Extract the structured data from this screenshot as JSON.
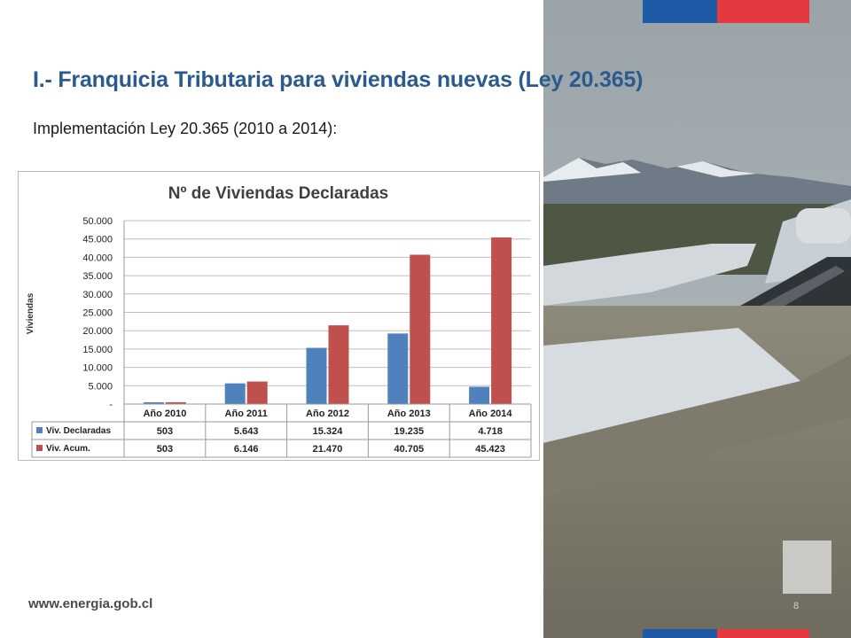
{
  "slide": {
    "title": "I.- Franquicia Tributaria para viviendas nuevas (Ley 20.365)",
    "subtitle": "Implementación Ley 20.365 (2010 a 2014):",
    "website": "www.energia.gob.cl",
    "page_number": "8"
  },
  "colors": {
    "title": "#2b5a8f",
    "flag_blue": "#1f5aa6",
    "flag_red": "#e5393f",
    "series_declaradas": "#4f81bd",
    "series_acum": "#c0504d"
  },
  "chart_data": {
    "type": "bar",
    "title": "Nº de Viviendas Declaradas",
    "ylabel": "Viviendas",
    "xlabel": "",
    "categories": [
      "Año 2010",
      "Año 2011",
      "Año 2012",
      "Año 2013",
      "Año 2014"
    ],
    "ylim": [
      0,
      50000
    ],
    "y_ticks": [
      0,
      5000,
      10000,
      15000,
      20000,
      25000,
      30000,
      35000,
      40000,
      45000,
      50000
    ],
    "y_tick_labels": [
      "-",
      "5.000",
      "10.000",
      "15.000",
      "20.000",
      "25.000",
      "30.000",
      "35.000",
      "40.000",
      "45.000",
      "50.000"
    ],
    "grid": true,
    "legend": "data-table",
    "series": [
      {
        "name": "Viv. Declaradas",
        "values": [
          503,
          5643,
          15324,
          19235,
          4718
        ],
        "labels": [
          "503",
          "5.643",
          "15.324",
          "19.235",
          "4.718"
        ],
        "color": "#4f81bd"
      },
      {
        "name": "Viv. Acum.",
        "values": [
          503,
          6146,
          21470,
          40705,
          45423
        ],
        "labels": [
          "503",
          "6.146",
          "21.470",
          "40.705",
          "45.423"
        ],
        "color": "#c0504d"
      }
    ]
  }
}
